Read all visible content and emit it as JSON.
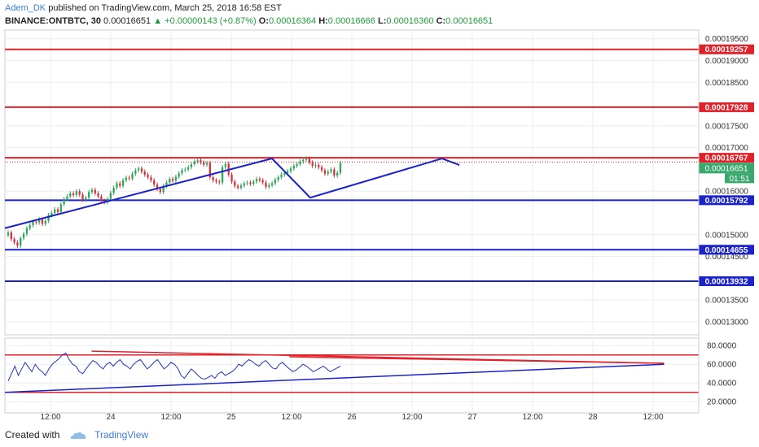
{
  "header": {
    "username": "Adem_DK",
    "published_text": "published on TradingView.com, March 25, 2018 16:58 EST",
    "symbol": "BINANCE:ONTBTC, 30",
    "last": "0.00016651",
    "arrow": "▲",
    "change": "+0.00000143 (+0.87%)",
    "o_label": "O:",
    "o_value": "0.00016364",
    "h_label": "H:",
    "h_value": "0.00016666",
    "l_label": "L:",
    "l_value": "0.00016360",
    "c_label": "C:",
    "c_value": "0.00016651"
  },
  "footer": {
    "created_with": "Created with",
    "brand": "TradingView"
  },
  "colors": {
    "up": "#2fa55a",
    "down": "#d6303b",
    "red_line": "#e0212a",
    "blue_line": "#1a22c8",
    "grid": "#eaeef2",
    "osc": "#2233bb"
  },
  "chart_data": {
    "type": "candlestick",
    "price_axis": {
      "min": 0.000127,
      "max": 0.000197,
      "ticks": [
        "0.00019500",
        "0.00019000",
        "0.00018500",
        "0.00017500",
        "0.00017000",
        "0.00016000",
        "0.00015000",
        "0.00014500",
        "0.00013500",
        "0.00013000"
      ],
      "tick_values": [
        0.000195,
        0.00019,
        0.000185,
        0.000175,
        0.00017,
        0.00016,
        0.00015,
        0.000145,
        0.000135,
        0.00013
      ]
    },
    "horizontal_levels": [
      {
        "label": "0.00019257",
        "value": 0.00019257,
        "color": "red"
      },
      {
        "label": "0.00017928",
        "value": 0.00017928,
        "color": "red"
      },
      {
        "label": "0.00016767",
        "value": 0.00016767,
        "color": "red"
      },
      {
        "label": "0.00015792",
        "value": 0.00015792,
        "color": "blue"
      },
      {
        "label": "0.00014655",
        "value": 0.00014655,
        "color": "blue"
      },
      {
        "label": "0.00013932",
        "value": 0.00013932,
        "color": "blue"
      }
    ],
    "last_price_label": "0.00016651",
    "last_price": 0.00016651,
    "countdown": "01:51",
    "time_axis": [
      {
        "label": "12:00",
        "t": 0
      },
      {
        "label": "24",
        "t": 1
      },
      {
        "label": "12:00",
        "t": 2
      },
      {
        "label": "25",
        "t": 3
      },
      {
        "label": "12:00",
        "t": 4
      },
      {
        "label": "26",
        "t": 5
      },
      {
        "label": "12:00",
        "t": 6
      },
      {
        "label": "27",
        "t": 7
      },
      {
        "label": "12:00",
        "t": 8
      },
      {
        "label": "28",
        "t": 9
      },
      {
        "label": "12:00",
        "t": 10
      }
    ],
    "candle_closes": [
      0.0001505,
      0.000149,
      0.0001482,
      0.0001475,
      0.0001492,
      0.0001502,
      0.0001515,
      0.0001522,
      0.000153,
      0.0001528,
      0.0001535,
      0.0001525,
      0.0001532,
      0.0001545,
      0.000155,
      0.0001558,
      0.0001552,
      0.000157,
      0.0001582,
      0.0001588,
      0.0001595,
      0.0001591,
      0.00016,
      0.0001592,
      0.000158,
      0.0001585,
      0.0001598,
      0.0001603,
      0.0001595,
      0.0001588,
      0.0001578,
      0.0001575,
      0.0001582,
      0.0001596,
      0.0001608,
      0.0001618,
      0.0001612,
      0.0001625,
      0.0001631,
      0.0001629,
      0.000164,
      0.0001648,
      0.0001652,
      0.0001645,
      0.0001638,
      0.0001632,
      0.0001625,
      0.0001615,
      0.0001605,
      0.0001598,
      0.0001612,
      0.000162,
      0.0001628,
      0.0001624,
      0.0001633,
      0.0001641,
      0.0001648,
      0.000165,
      0.0001655,
      0.0001662,
      0.0001668,
      0.0001671,
      0.0001666,
      0.0001661,
      0.0001665,
      0.0001632,
      0.0001625,
      0.0001622,
      0.000162,
      0.0001655,
      0.0001663,
      0.0001638,
      0.0001622,
      0.0001612,
      0.0001608,
      0.0001613,
      0.0001618,
      0.000162,
      0.0001617,
      0.0001622,
      0.0001628,
      0.0001625,
      0.000162,
      0.000161,
      0.0001614,
      0.0001618,
      0.0001626,
      0.0001632,
      0.0001638,
      0.0001642,
      0.0001646,
      0.0001652,
      0.0001658,
      0.0001662,
      0.0001668,
      0.0001672,
      0.0001675,
      0.0001666,
      0.0001658,
      0.000166,
      0.0001655,
      0.0001648,
      0.000164,
      0.0001645,
      0.000165,
      0.0001636,
      0.0001642,
      0.0001665
    ],
    "trendlines": [
      {
        "color": "blue",
        "points": [
          [
            0.0,
            0.0001515
          ],
          [
            0.385,
            0.0001675
          ],
          [
            0.44,
            0.0001585
          ],
          [
            0.63,
            0.0001675
          ],
          [
            0.655,
            0.000166
          ]
        ]
      }
    ],
    "oscillator": {
      "ticks": [
        "80.0000",
        "60.0000",
        "40.0000",
        "20.0000"
      ],
      "tick_values": [
        80,
        60,
        40,
        20
      ],
      "min": 8,
      "max": 88,
      "levels": [
        {
          "value": 70,
          "color": "red"
        },
        {
          "value": 30,
          "color": "red"
        }
      ],
      "values": [
        42,
        50,
        58,
        48,
        55,
        62,
        57,
        52,
        60,
        55,
        52,
        48,
        55,
        60,
        63,
        66,
        70,
        72,
        65,
        60,
        58,
        52,
        50,
        55,
        60,
        64,
        62,
        58,
        55,
        60,
        62,
        58,
        62,
        65,
        60,
        58,
        55,
        60,
        63,
        65,
        60,
        55,
        58,
        62,
        65,
        60,
        55,
        58,
        62,
        60,
        56,
        48,
        45,
        50,
        55,
        52,
        48,
        45,
        44,
        46,
        48,
        45,
        50,
        52,
        48,
        50,
        52,
        55,
        60,
        58,
        62,
        65,
        63,
        60,
        58,
        62,
        64,
        60,
        56,
        55,
        60,
        62,
        58,
        55,
        52,
        54,
        57,
        60,
        58,
        55,
        52,
        54,
        56,
        58,
        55,
        52,
        54,
        56,
        58
      ],
      "trendlines": [
        {
          "color": "red",
          "points": [
            [
              0.125,
              74
            ],
            [
              0.95,
              61
            ]
          ]
        },
        {
          "color": "red",
          "points": [
            [
              0.41,
              68
            ],
            [
              0.95,
              61
            ]
          ]
        },
        {
          "color": "blue",
          "points": [
            [
              0.0,
              30
            ],
            [
              0.95,
              60
            ]
          ]
        }
      ]
    }
  }
}
